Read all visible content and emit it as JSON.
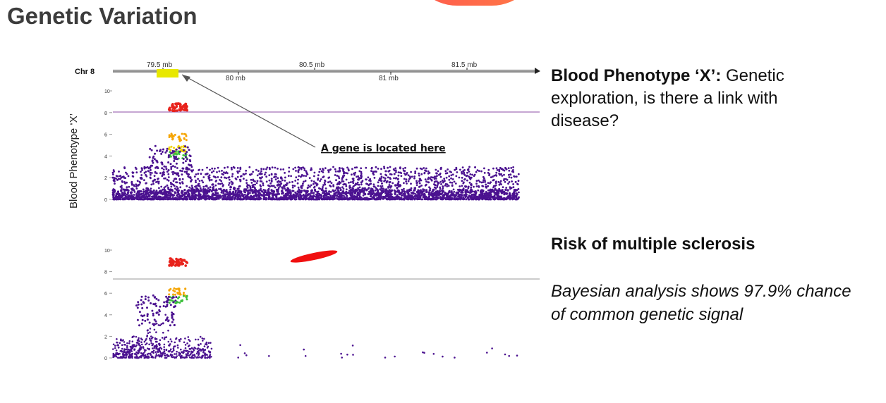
{
  "slide": {
    "title": "Genetic Variation",
    "top_heading_bold": "Blood Phenotype ‘X’:",
    "top_heading_rest": " Genetic exploration, is there a link with disease?",
    "ms_heading": "Risk of multiple sclerosis",
    "bayes_text": "Bayesian analysis shows 97.9% chance of common genetic signal"
  },
  "colors": {
    "background_dots": "#4b1290",
    "red": "#e8231c",
    "orange": "#f5a400",
    "yellow": "#f0d000",
    "green": "#3cc03c",
    "gene_box": "#e8e800",
    "threshold_top": "#8c4ca6",
    "threshold_bottom": "#9a9a9a",
    "accent": "#ff5a4e"
  },
  "chart_data": [
    {
      "type": "scatter",
      "name": "Blood Phenotype ‘X’ association",
      "chromosome_label": "Chr 8",
      "x_tick_labels_top": [
        "79.5 mb",
        "80.5 mb",
        "81.5 mb"
      ],
      "x_tick_labels_bottom": [
        "80 mb",
        "81 mb"
      ],
      "ylabel": "Blood Phenotype ‘X’",
      "ylim": [
        0,
        10
      ],
      "y_ticks": [
        "0",
        "2",
        "4",
        "6",
        "8",
        "10"
      ],
      "significance_threshold": 8.1,
      "annotation": "A gene is located here",
      "peak_clusters": [
        {
          "color": "red",
          "x_mb": 79.6,
          "y": 8.5
        },
        {
          "color": "orange",
          "x_mb": 79.6,
          "y": 5.7
        },
        {
          "color": "yellow",
          "x_mb": 79.6,
          "y": 4.6
        },
        {
          "color": "green",
          "x_mb": 79.6,
          "y": 4.1
        },
        {
          "color": "purple",
          "x_mb": 79.55,
          "y": 3.7
        }
      ],
      "background_level_max": 3.0
    },
    {
      "type": "scatter",
      "name": "Risk of multiple sclerosis association",
      "ylim": [
        0,
        10
      ],
      "y_ticks": [
        "0",
        "2",
        "4",
        "6",
        "8",
        "10"
      ],
      "significance_threshold": 7.3,
      "peak_clusters": [
        {
          "color": "red",
          "x_mb": 79.6,
          "y": 8.9
        },
        {
          "color": "orange",
          "x_mb": 79.6,
          "y": 6.1
        },
        {
          "color": "green",
          "x_mb": 79.6,
          "y": 5.4
        },
        {
          "color": "purple",
          "x_mb": 79.45,
          "y": 4.4
        }
      ],
      "background_level_max": 2.0
    }
  ]
}
